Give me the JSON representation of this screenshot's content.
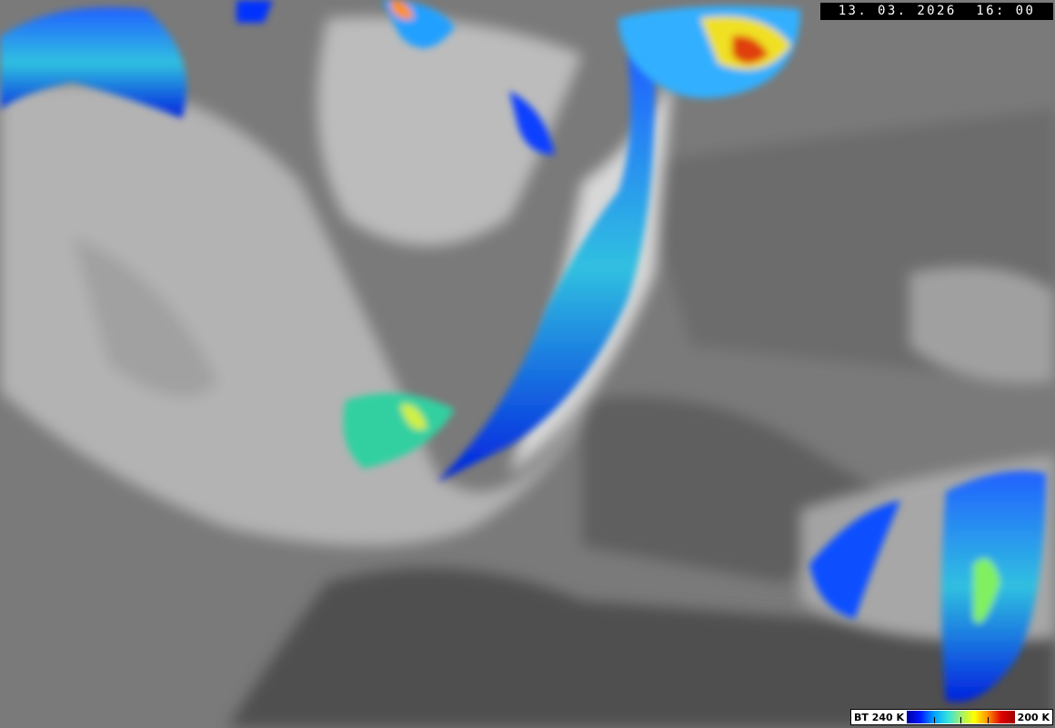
{
  "image": {
    "type": "satellite infrared brightness temperature",
    "timestamp": "13. 03. 2026  16: 00",
    "legend": {
      "low_label": "BT 240 K",
      "high_label": "200 K",
      "colors": [
        "#0000a0",
        "#0018ff",
        "#00a0ff",
        "#30e0e0",
        "#a0f070",
        "#ffff00",
        "#ff9000",
        "#e00000",
        "#a00000"
      ]
    }
  }
}
